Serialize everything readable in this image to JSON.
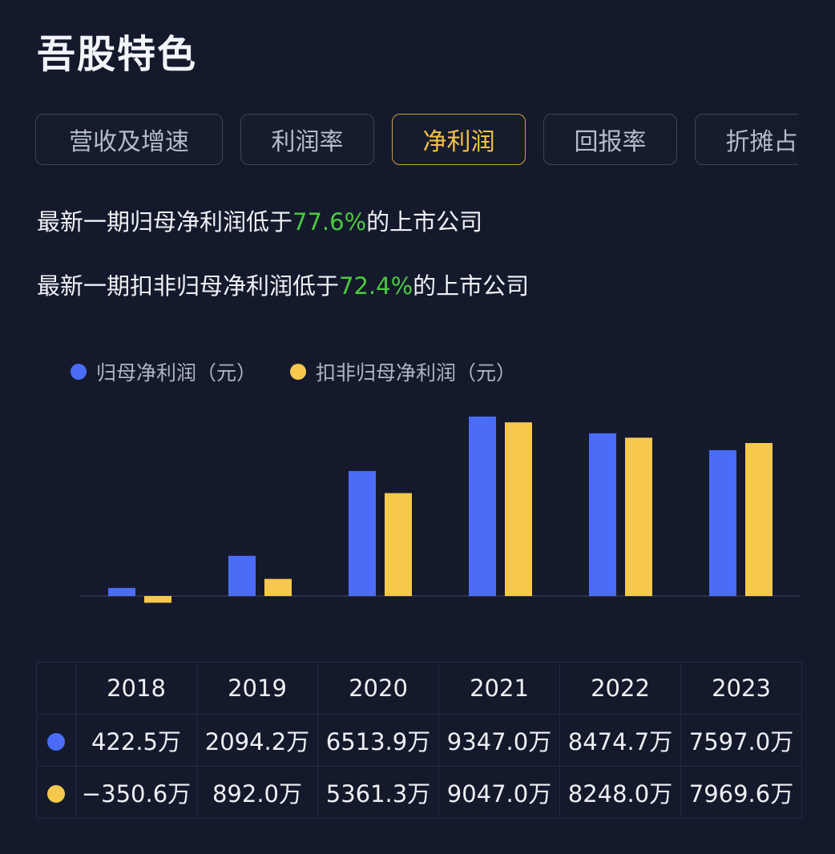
{
  "page": {
    "title": "吾股特色"
  },
  "tabs": [
    {
      "label": "营收及增速",
      "active": false
    },
    {
      "label": "利润率",
      "active": false
    },
    {
      "label": "净利润",
      "active": true
    },
    {
      "label": "回报率",
      "active": false
    },
    {
      "label": "折摊占",
      "active": false
    }
  ],
  "stats": [
    {
      "prefix": "最新一期归母净利润低于",
      "value": "77.6%",
      "suffix": "的上市公司"
    },
    {
      "prefix": "最新一期扣非归母净利润低于",
      "value": "72.4%",
      "suffix": "的上市公司"
    }
  ],
  "colors": {
    "series1": "#4a6cf7",
    "series2": "#f6c94d",
    "highlight": "#4cc93f",
    "active_tab": "#f3c246"
  },
  "chart_data": {
    "type": "bar",
    "categories": [
      "2018",
      "2019",
      "2020",
      "2021",
      "2022",
      "2023"
    ],
    "unit": "万",
    "series": [
      {
        "name": "归母净利润（元）",
        "values": [
          422.5,
          2094.2,
          6513.9,
          9347.0,
          8474.7,
          7597.0
        ]
      },
      {
        "name": "扣非归母净利润（元）",
        "values": [
          -350.6,
          892.0,
          5361.3,
          9047.0,
          8248.0,
          7969.6
        ]
      }
    ],
    "legend": "top-left",
    "grid": false
  },
  "table": {
    "headers": [
      "2018",
      "2019",
      "2020",
      "2021",
      "2022",
      "2023"
    ],
    "rows": [
      [
        "422.5万",
        "2094.2万",
        "6513.9万",
        "9347.0万",
        "8474.7万",
        "7597.0万"
      ],
      [
        "−350.6万",
        "892.0万",
        "5361.3万",
        "9047.0万",
        "8248.0万",
        "7969.6万"
      ]
    ]
  }
}
